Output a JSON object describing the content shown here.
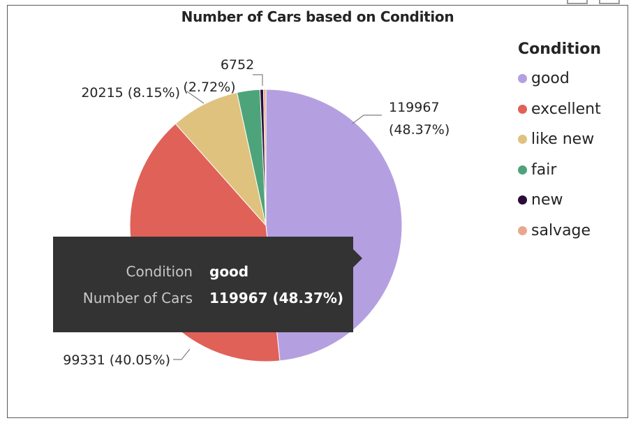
{
  "chart_data": {
    "type": "pie",
    "title": "Number of Cars based on Condition",
    "legend_title": "Condition",
    "legend_position": "right",
    "slices": [
      {
        "name": "good",
        "value": 119967,
        "percent_label": "48.37%",
        "color": "#b4a0e0"
      },
      {
        "name": "excellent",
        "value": 99331,
        "percent_label": "40.05%",
        "color": "#e06158"
      },
      {
        "name": "like new",
        "value": 20215,
        "percent_label": "8.15%",
        "color": "#dfc27e"
      },
      {
        "name": "fair",
        "value": 6752,
        "percent_label": "2.72%",
        "color": "#4ea47a"
      },
      {
        "name": "new",
        "value": 1020,
        "percent_label": "",
        "color": "#2a0b3a"
      },
      {
        "name": "salvage",
        "value": 710,
        "percent_label": "",
        "color": "#e8a88e"
      }
    ],
    "labels": [
      {
        "lines": [
          "119967",
          "(48.37%)"
        ]
      },
      {
        "lines": [
          "99331 (40.05%)"
        ]
      },
      {
        "lines": [
          "20215 (8.15%)"
        ]
      },
      {
        "lines": [
          "6752",
          "(2.72%)"
        ]
      }
    ]
  },
  "tooltip": {
    "condition_key": "Condition",
    "condition_value": "good",
    "count_key": "Number of Cars",
    "count_value": "119967 (48.37%)"
  }
}
